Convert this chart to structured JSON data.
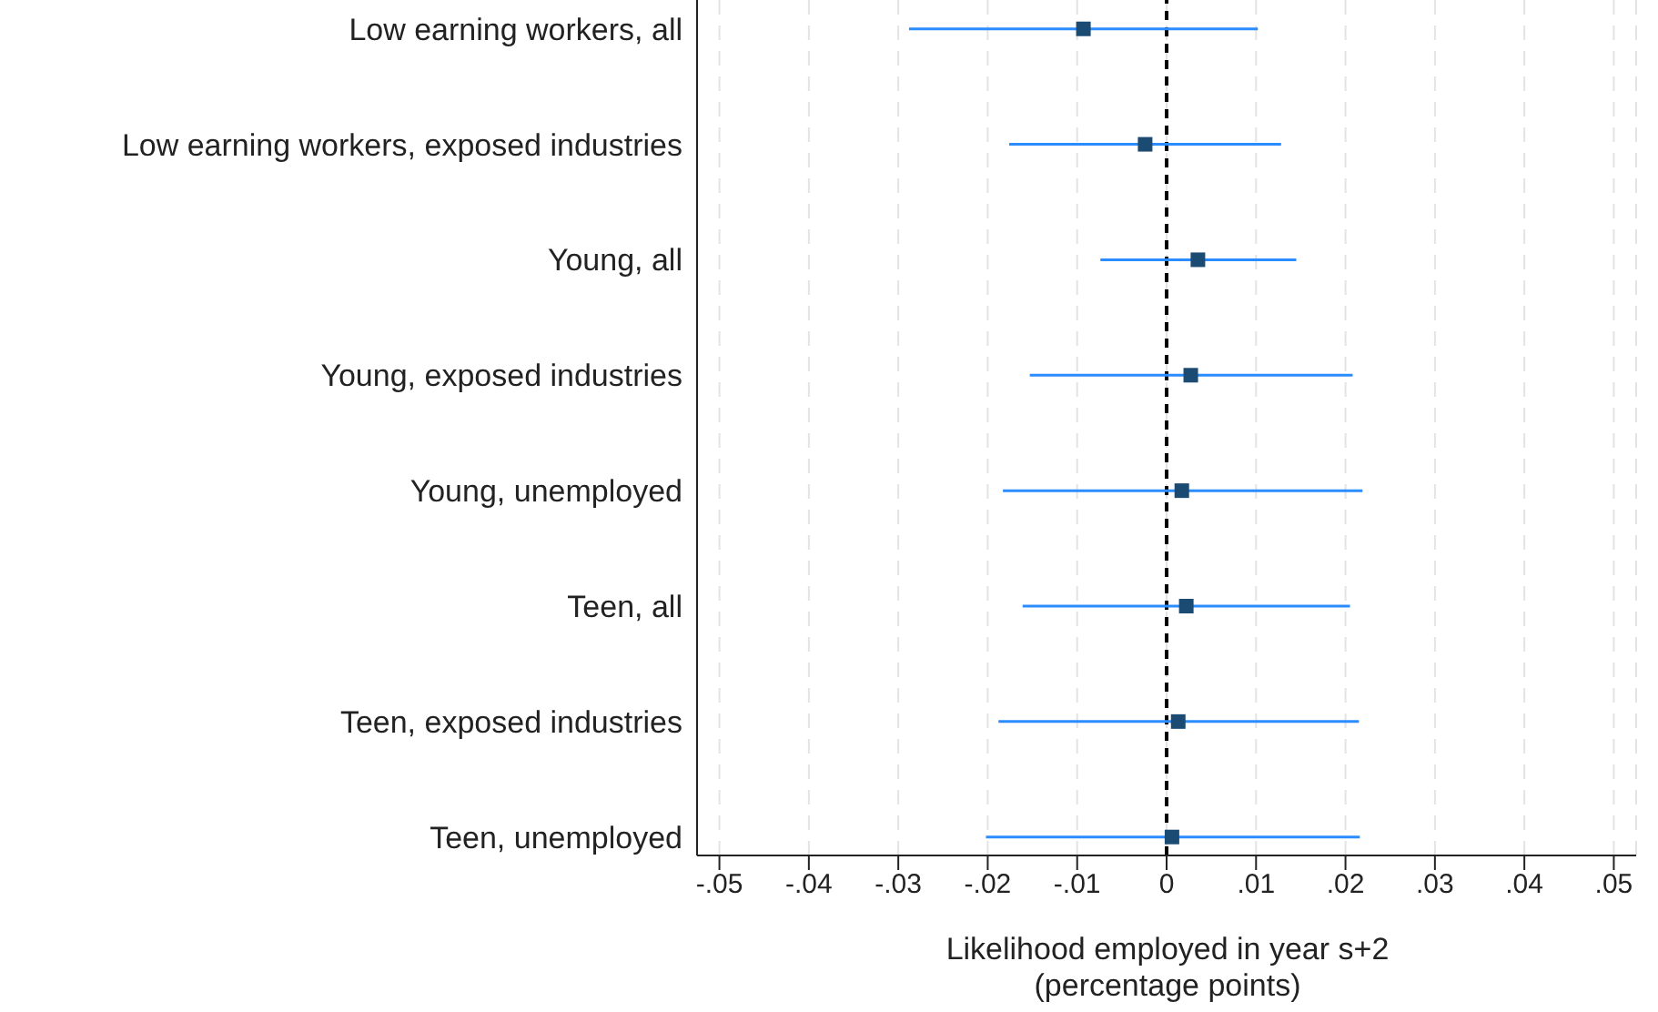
{
  "chart_data": {
    "type": "scatter",
    "orientation": "horizontal",
    "xlabel": "Likelihood employed in year s+2\n(percentage points)",
    "categories": [
      "Low earning workers, all",
      "Low earning workers, exposed industries",
      "Young, all",
      "Young, exposed industries",
      "Young, unemployed",
      "Teen, all",
      "Teen, exposed industries",
      "Teen, unemployed"
    ],
    "values": [
      -0.0093,
      -0.0024,
      0.0035,
      0.0027,
      0.0017,
      0.0022,
      0.0013,
      0.0006
    ],
    "errors": [
      [
        -0.0288,
        0.0102
      ],
      [
        -0.0176,
        0.0128
      ],
      [
        -0.0074,
        0.0145
      ],
      [
        -0.0153,
        0.0208
      ],
      [
        -0.0183,
        0.0219
      ],
      [
        -0.0161,
        0.0205
      ],
      [
        -0.0188,
        0.0215
      ],
      [
        -0.0202,
        0.0216
      ]
    ],
    "color": "#1b4a73",
    "marker": "square",
    "grid": "x",
    "xlim": [
      -0.0525,
      0.0525
    ],
    "xticks": [
      {
        "value": -0.05,
        "label": "-.05"
      },
      {
        "value": -0.04,
        "label": "-.04"
      },
      {
        "value": -0.03,
        "label": "-.03"
      },
      {
        "value": -0.02,
        "label": "-.02"
      },
      {
        "value": -0.01,
        "label": "-.01"
      },
      0,
      {
        "value": 0.01,
        "label": ".01"
      },
      {
        "value": 0.02,
        "label": ".02"
      },
      {
        "value": 0.03,
        "label": ".03"
      },
      {
        "value": 0.04,
        "label": ".04"
      },
      {
        "value": 0.05,
        "label": ".05"
      }
    ],
    "ref_lines": [
      {
        "axis": "x",
        "value": 0,
        "color": "#000000",
        "line_style": "dashed"
      }
    ]
  }
}
